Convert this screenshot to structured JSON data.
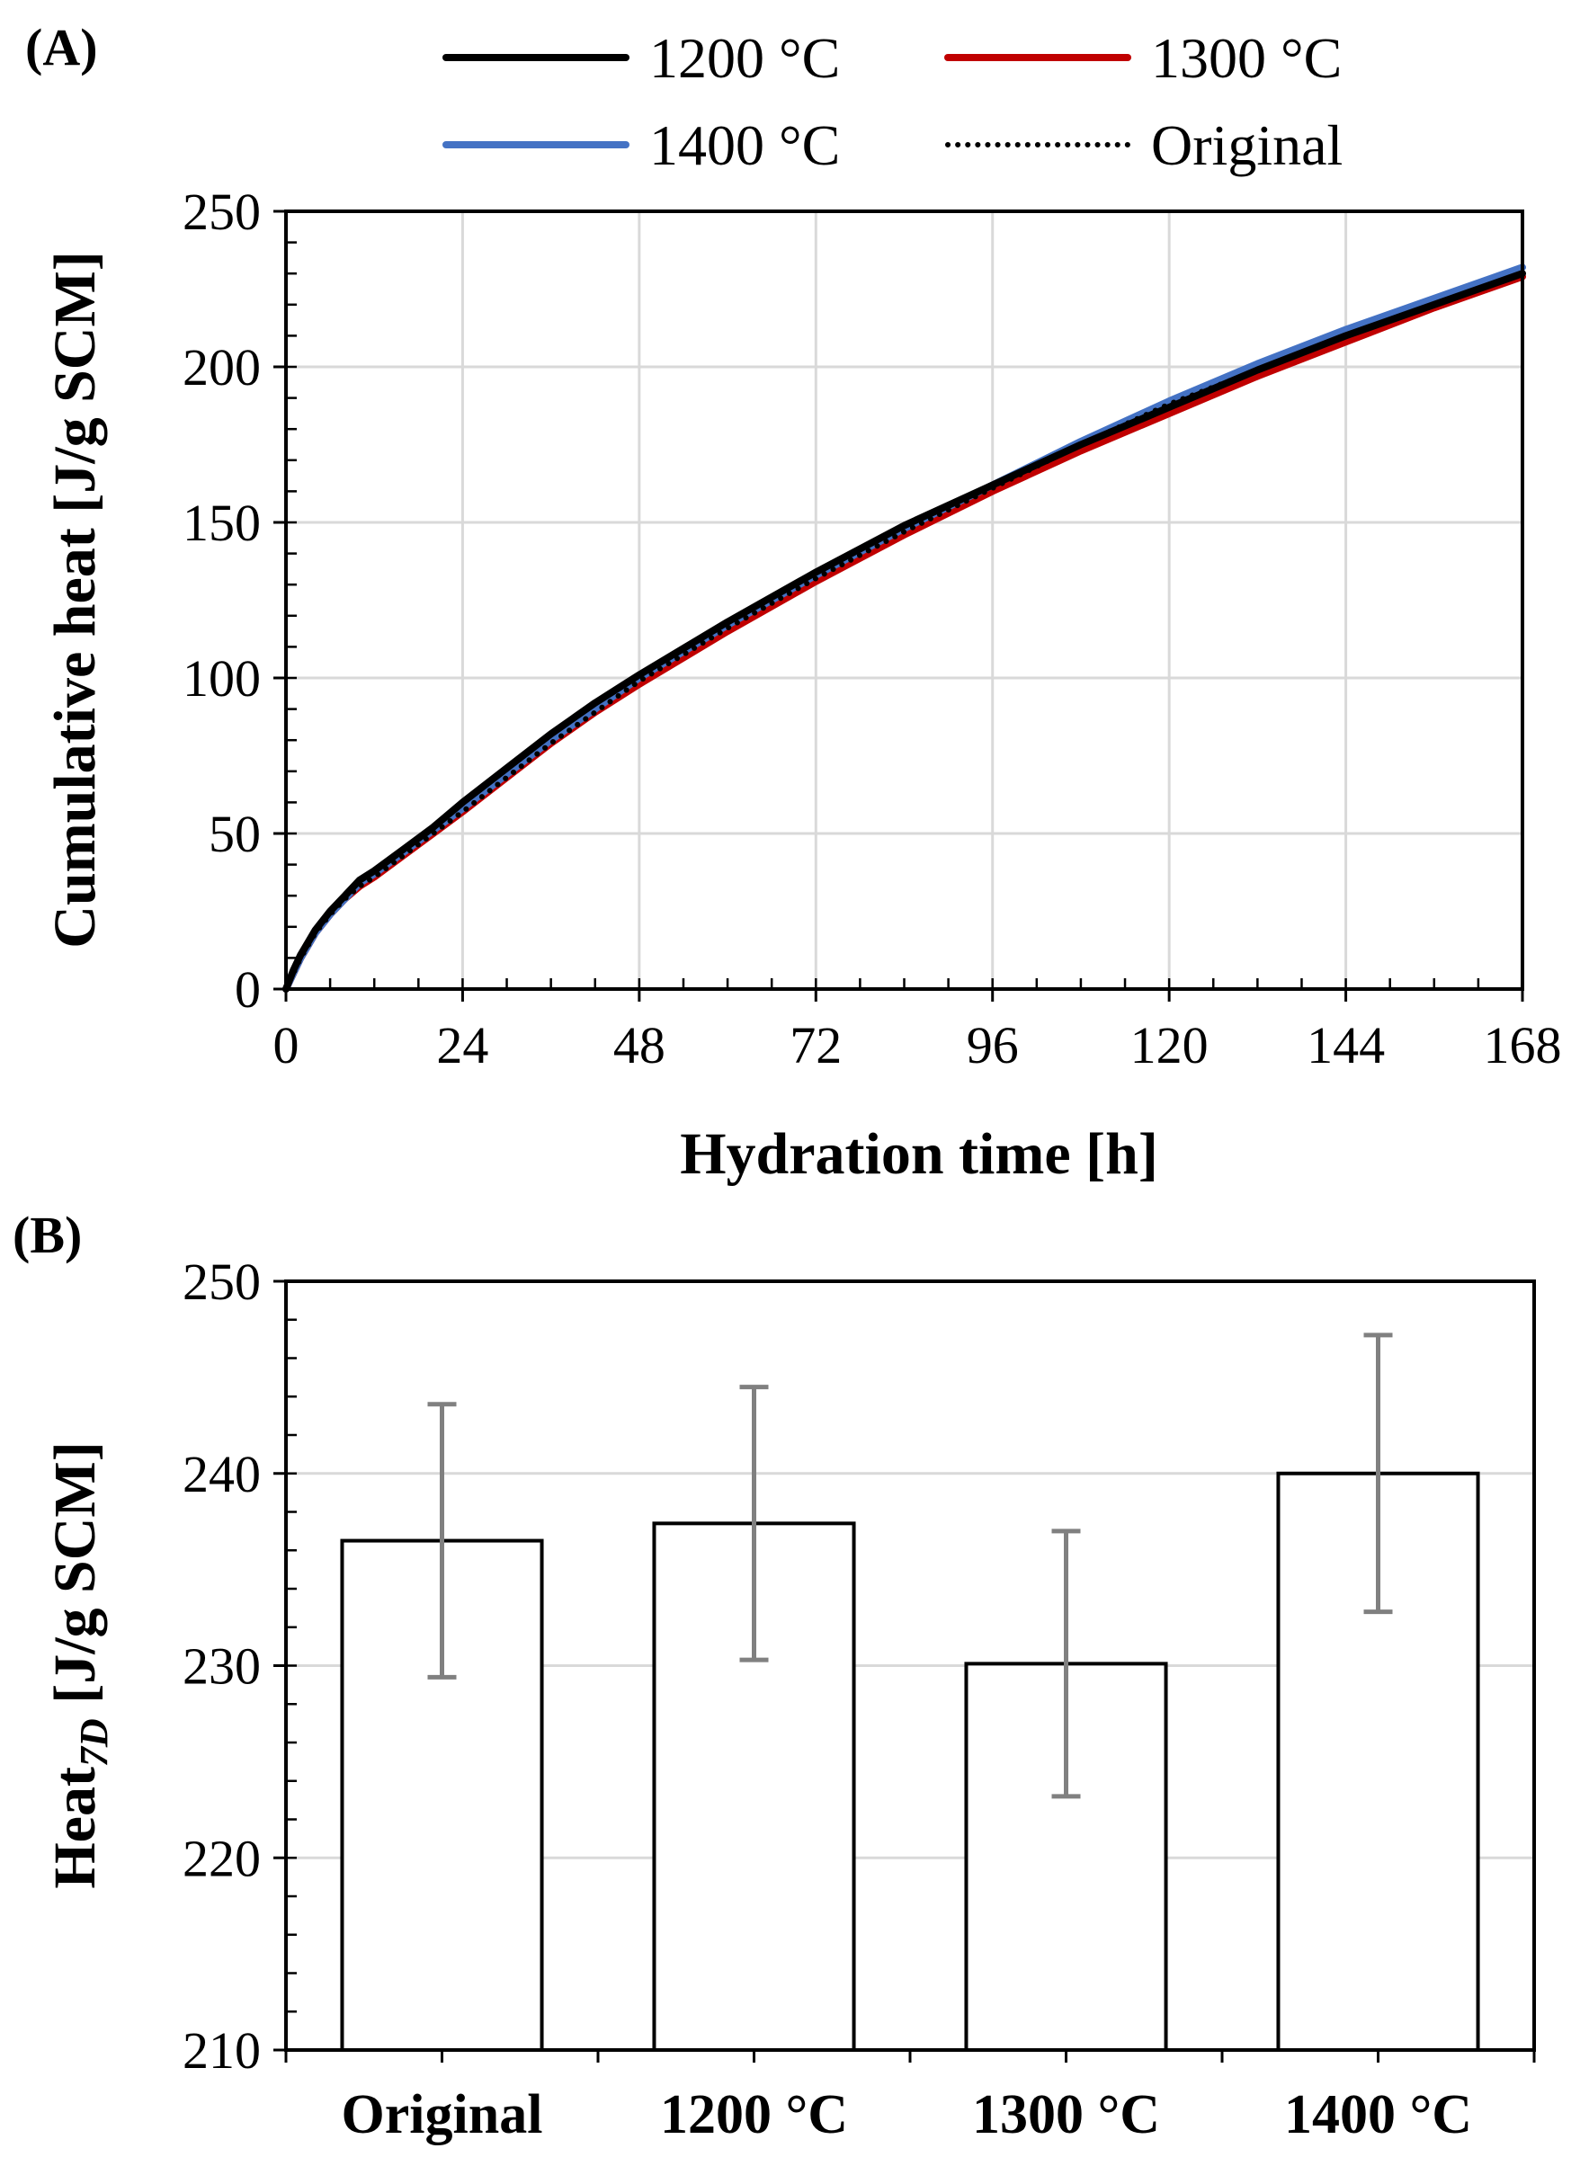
{
  "panel_a": {
    "label": "(A)",
    "legend": [
      {
        "name": "1200 °C",
        "color": "#000000",
        "style": "solid"
      },
      {
        "name": "1300 °C",
        "color": "#c00000",
        "style": "solid"
      },
      {
        "name": "1400 °C",
        "color": "#4472c4",
        "style": "solid"
      },
      {
        "name": "Original",
        "color": "#000000",
        "style": "dotted"
      }
    ]
  },
  "panel_b": {
    "label": "(B)",
    "ylabel_main": "Heat",
    "ylabel_sub": "7D",
    "ylabel_rest": " [J/g SCM]"
  },
  "chart_data": [
    {
      "type": "line",
      "title": "",
      "xlabel": "Hydration time [h]",
      "ylabel": "Cumulative heat [J/g SCM]",
      "xlim": [
        0,
        168
      ],
      "ylim": [
        0,
        250
      ],
      "xticks": [
        0,
        24,
        48,
        72,
        96,
        120,
        144,
        168
      ],
      "yticks": [
        0,
        50,
        100,
        150,
        200,
        250
      ],
      "grid": true,
      "legend_position": "top",
      "x": [
        0,
        1,
        2,
        3,
        4,
        6,
        8,
        10,
        12,
        16,
        20,
        24,
        30,
        36,
        42,
        48,
        60,
        72,
        84,
        96,
        108,
        120,
        132,
        144,
        156,
        168
      ],
      "series": [
        {
          "name": "1200 °C",
          "color": "#000000",
          "style": "solid",
          "values": [
            0,
            6,
            11,
            15,
            19,
            25,
            30,
            35,
            38,
            45,
            52,
            60,
            71,
            82,
            92,
            101,
            118,
            134,
            149,
            162,
            175,
            187,
            199,
            210,
            220,
            230
          ]
        },
        {
          "name": "1300 °C",
          "color": "#c00000",
          "style": "solid",
          "values": [
            0,
            5,
            10,
            14,
            18,
            24,
            29,
            33,
            36,
            43,
            50,
            57,
            68,
            79,
            89,
            98,
            115,
            131,
            146,
            160,
            173,
            185,
            197,
            208,
            219,
            229
          ]
        },
        {
          "name": "1400 °C",
          "color": "#4472c4",
          "style": "solid",
          "values": [
            0,
            5,
            10,
            14,
            18,
            24,
            29,
            34,
            37,
            44,
            51,
            58,
            69,
            80,
            90,
            100,
            117,
            133,
            148,
            162,
            176,
            189,
            201,
            212,
            222,
            232
          ]
        },
        {
          "name": "Original",
          "color": "#000000",
          "style": "dotted",
          "values": [
            0,
            5,
            10,
            14,
            18,
            24,
            29,
            33,
            36,
            43,
            50,
            57,
            68,
            79,
            89,
            99,
            116,
            132,
            147,
            161,
            175,
            188,
            199,
            210,
            220,
            230
          ]
        }
      ]
    },
    {
      "type": "bar",
      "title": "",
      "xlabel": "",
      "ylabel": "Heat7D [J/g SCM]",
      "ylim": [
        210,
        250
      ],
      "yticks": [
        210,
        220,
        230,
        240,
        250
      ],
      "grid": true,
      "categories": [
        "Original",
        "1200 °C",
        "1300 °C",
        "1400 °C"
      ],
      "values": [
        236.5,
        237.4,
        230.1,
        240.0
      ],
      "errors": [
        7.1,
        7.1,
        6.9,
        7.2
      ],
      "bar_color": "#ffffff",
      "error_color": "#808080"
    }
  ]
}
